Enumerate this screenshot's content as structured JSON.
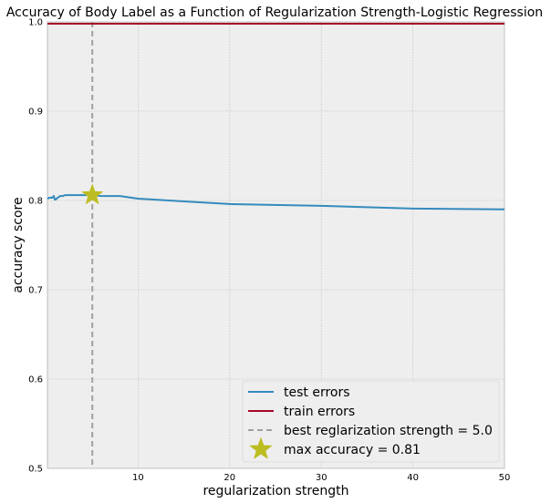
{
  "chart_data": {
    "type": "line",
    "title": "Accuracy of Body Label as a Function of Regularization Strength-Logistic Regression",
    "xlabel": "regularization strength",
    "ylabel": "accuracy score",
    "xlim": [
      0.1,
      50
    ],
    "ylim": [
      0.5,
      1.0
    ],
    "xticks": [
      10,
      20,
      30,
      40,
      50
    ],
    "yticks": [
      0.5,
      0.6,
      0.7,
      0.8,
      0.9,
      1.0
    ],
    "xtick_labels": [
      "10",
      "20",
      "30",
      "40",
      "50"
    ],
    "ytick_labels": [
      "0.5",
      "0.6",
      "0.7",
      "0.8",
      "0.9",
      "1.0"
    ],
    "grid": true,
    "legend_position": "lower-right",
    "series": [
      {
        "name": "test errors",
        "color": "#348ABD",
        "x": [
          0.1,
          0.3,
          0.6,
          0.8,
          0.9,
          1.0,
          1.2,
          1.5,
          1.8,
          2.0,
          3.0,
          4.0,
          5.0,
          6.0,
          8.0,
          10.0,
          15.0,
          20.0,
          30.0,
          40.0,
          50.0
        ],
        "y": [
          0.802,
          0.803,
          0.803,
          0.805,
          0.801,
          0.801,
          0.803,
          0.805,
          0.805,
          0.806,
          0.806,
          0.806,
          0.806,
          0.805,
          0.805,
          0.802,
          0.799,
          0.796,
          0.794,
          0.791,
          0.79
        ]
      },
      {
        "name": "train errors",
        "color": "#A60628",
        "x": [
          0.1,
          50.0
        ],
        "y": [
          0.998,
          0.998
        ]
      }
    ],
    "vline": {
      "name": "best reglarization strength = 5.0",
      "x": 5.0,
      "color": "#A0A0A0"
    },
    "marker": {
      "name": "max accuracy = 0.81",
      "x": 5.0,
      "y": 0.806,
      "color": "#BCBD22"
    }
  }
}
